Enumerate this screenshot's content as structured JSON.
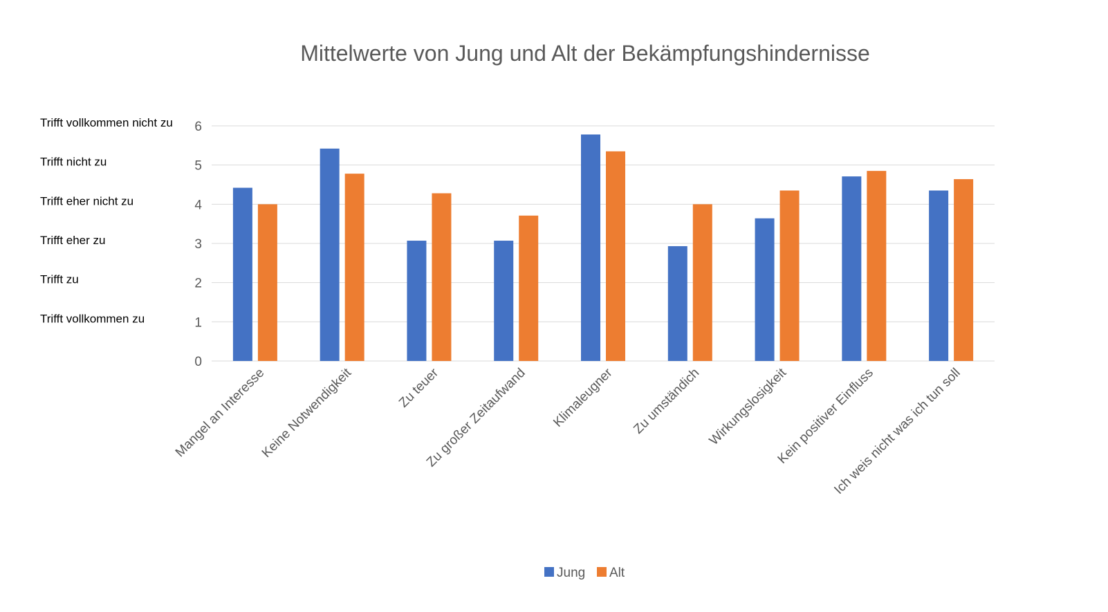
{
  "chart_data": {
    "type": "bar",
    "title": "Mittelwerte von Jung und Alt der Bekämpfungshindernisse",
    "categories": [
      "Mangel an Interesse",
      "Keine Notwendigkeit",
      "Zu teuer",
      "Zu großer Zeitaufwand",
      "Klimaleugner",
      "Zu umständich",
      "Wirkungslosigkeit",
      "Kein positiver Einfluss",
      "Ich weis nicht was ich tun soll"
    ],
    "series": [
      {
        "name": "Jung",
        "color": "#4472c4",
        "values": [
          4.42,
          5.42,
          3.07,
          3.07,
          5.78,
          2.93,
          3.64,
          4.71,
          4.35
        ]
      },
      {
        "name": "Alt",
        "color": "#ed7d31",
        "values": [
          4.0,
          4.78,
          4.28,
          3.71,
          5.35,
          4.0,
          4.35,
          4.85,
          4.64
        ]
      }
    ],
    "ylim": [
      0,
      6
    ],
    "yticks": [
      0,
      1,
      2,
      3,
      4,
      5,
      6
    ],
    "scale_labels": [
      "Trifft vollkommen nicht zu",
      "Trifft nicht zu",
      "Trifft eher nicht zu",
      "Trifft eher zu",
      "Trifft zu",
      "Trifft vollkommen zu"
    ],
    "grid": true,
    "legend_position": "bottom",
    "xlabel": "",
    "ylabel": ""
  }
}
